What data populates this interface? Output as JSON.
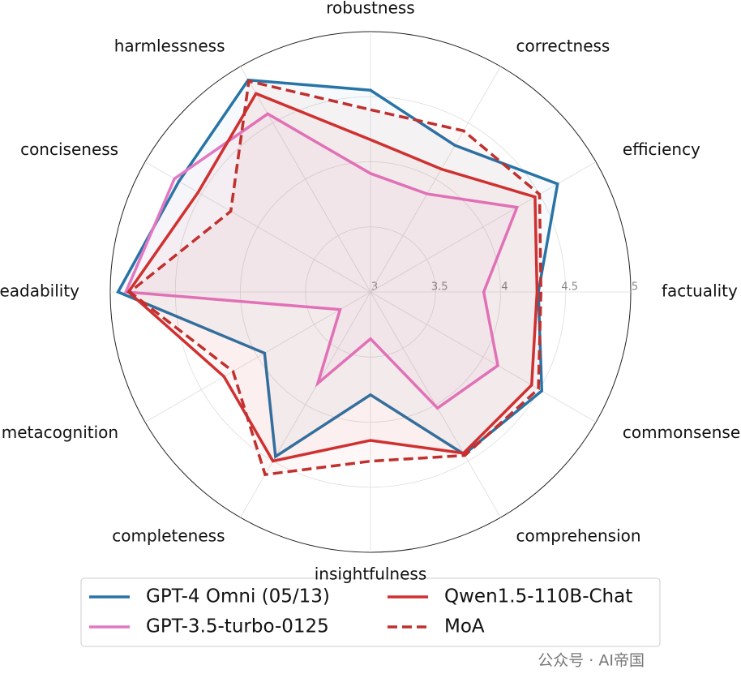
{
  "chart_data": {
    "type": "radar",
    "categories": [
      "robustness",
      "correctness",
      "efficiency",
      "factuality",
      "commonsense",
      "comprehension",
      "insightfulness",
      "completeness",
      "metacognition",
      "readability",
      "conciseness",
      "harmlessness"
    ],
    "rlim": [
      3,
      5
    ],
    "rticks": [
      3,
      3.5,
      4,
      4.5,
      5
    ],
    "grid": true,
    "legend": "lower center",
    "series": [
      {
        "name": "GPT-4 Omni (05/13)",
        "color": "#2874a6",
        "dashed": false,
        "values": [
          4.55,
          4.3,
          4.66,
          4.29,
          4.52,
          4.44,
          3.79,
          4.46,
          3.94,
          4.94,
          4.7,
          4.88
        ]
      },
      {
        "name": "GPT-3.5-turbo-0125",
        "color": "#e377c2",
        "dashed": false,
        "values": [
          3.91,
          3.87,
          4.3,
          3.87,
          4.13,
          4.03,
          3.36,
          3.81,
          3.27,
          4.88,
          4.74,
          4.58
        ]
      },
      {
        "name": "Qwen1.5-110B-Chat",
        "color": "#d03030",
        "dashed": false,
        "values": [
          4.17,
          4.09,
          4.46,
          4.28,
          4.43,
          4.43,
          4.14,
          4.5,
          4.3,
          4.86,
          4.53,
          4.76
        ]
      },
      {
        "name": "MoA",
        "color": "#c0302e",
        "dashed": true,
        "values": [
          4.4,
          4.43,
          4.5,
          4.31,
          4.49,
          4.45,
          4.3,
          4.62,
          4.22,
          4.85,
          4.24,
          4.87
        ]
      }
    ]
  },
  "watermark": "公众号 · AI帝国"
}
